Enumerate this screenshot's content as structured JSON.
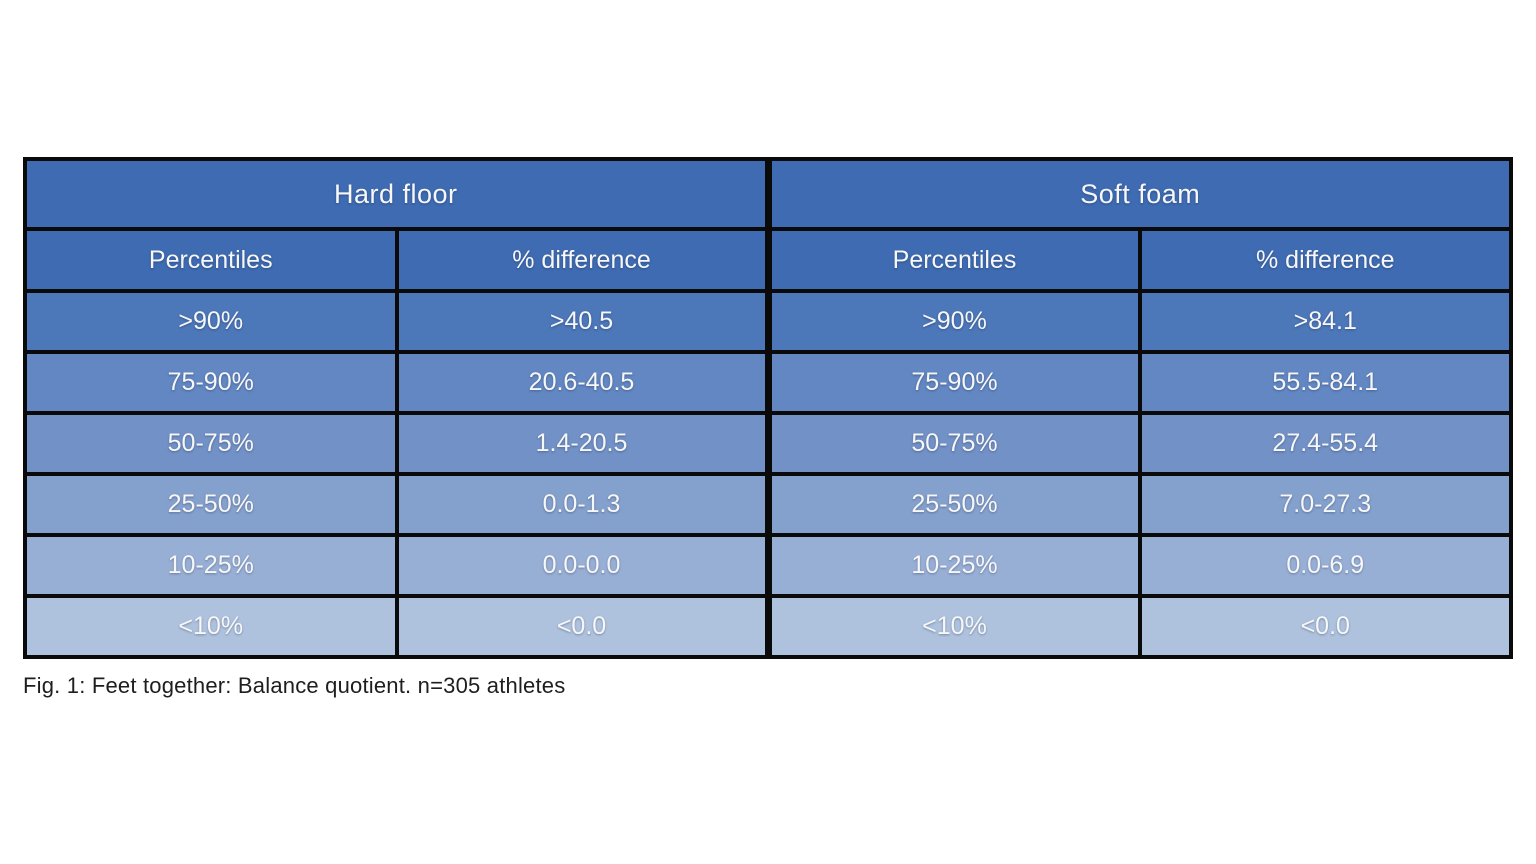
{
  "figure": {
    "caption": "Fig. 1: Feet together: Balance quotient. n=305 athletes"
  },
  "table": {
    "group_headers": [
      "Hard floor",
      "Soft foam"
    ],
    "column_headers": [
      "Percentiles",
      "% difference",
      "Percentiles",
      "% difference"
    ],
    "rows": [
      [
        ">90%",
        ">40.5",
        ">90%",
        ">84.1"
      ],
      [
        "75-90%",
        "20.6-40.5",
        "75-90%",
        "55.5-84.1"
      ],
      [
        "50-75%",
        "1.4-20.5",
        "50-75%",
        "27.4-55.4"
      ],
      [
        "25-50%",
        "0.0-1.3",
        "25-50%",
        "7.0-27.3"
      ],
      [
        "10-25%",
        "0.0-0.0",
        "10-25%",
        "0.0-6.9"
      ],
      [
        "<10%",
        "<0.0",
        "<10%",
        "<0.0"
      ]
    ],
    "colors": {
      "header": "#3E6BB2",
      "row_fills": [
        "#4C77B9",
        "#6287C2",
        "#7291C6",
        "#84A0CC",
        "#98AFD5",
        "#AEC2DE"
      ],
      "border": "#0a0a0a",
      "cell_text": "#f7f7f7"
    }
  },
  "chart_data": {
    "type": "table",
    "title": "Fig. 1: Feet together: Balance quotient. n=305 athletes",
    "groups": [
      "Hard floor",
      "Soft foam"
    ],
    "columns_per_group": [
      "Percentiles",
      "% difference"
    ],
    "percentile_bands": [
      ">90%",
      "75-90%",
      "50-75%",
      "25-50%",
      "10-25%",
      "<10%"
    ],
    "series": [
      {
        "name": "Hard floor % difference",
        "values": [
          ">40.5",
          "20.6-40.5",
          "1.4-20.5",
          "0.0-1.3",
          "0.0-0.0",
          "<0.0"
        ]
      },
      {
        "name": "Soft foam % difference",
        "values": [
          ">84.1",
          "55.5-84.1",
          "27.4-55.4",
          "7.0-27.3",
          "0.0-6.9",
          "<0.0"
        ]
      }
    ],
    "sample_size_note": "n=305 athletes",
    "layout": "two side-by-side sub-tables sharing percentile bands, blue gradient rows dark-to-light top-to-bottom"
  }
}
